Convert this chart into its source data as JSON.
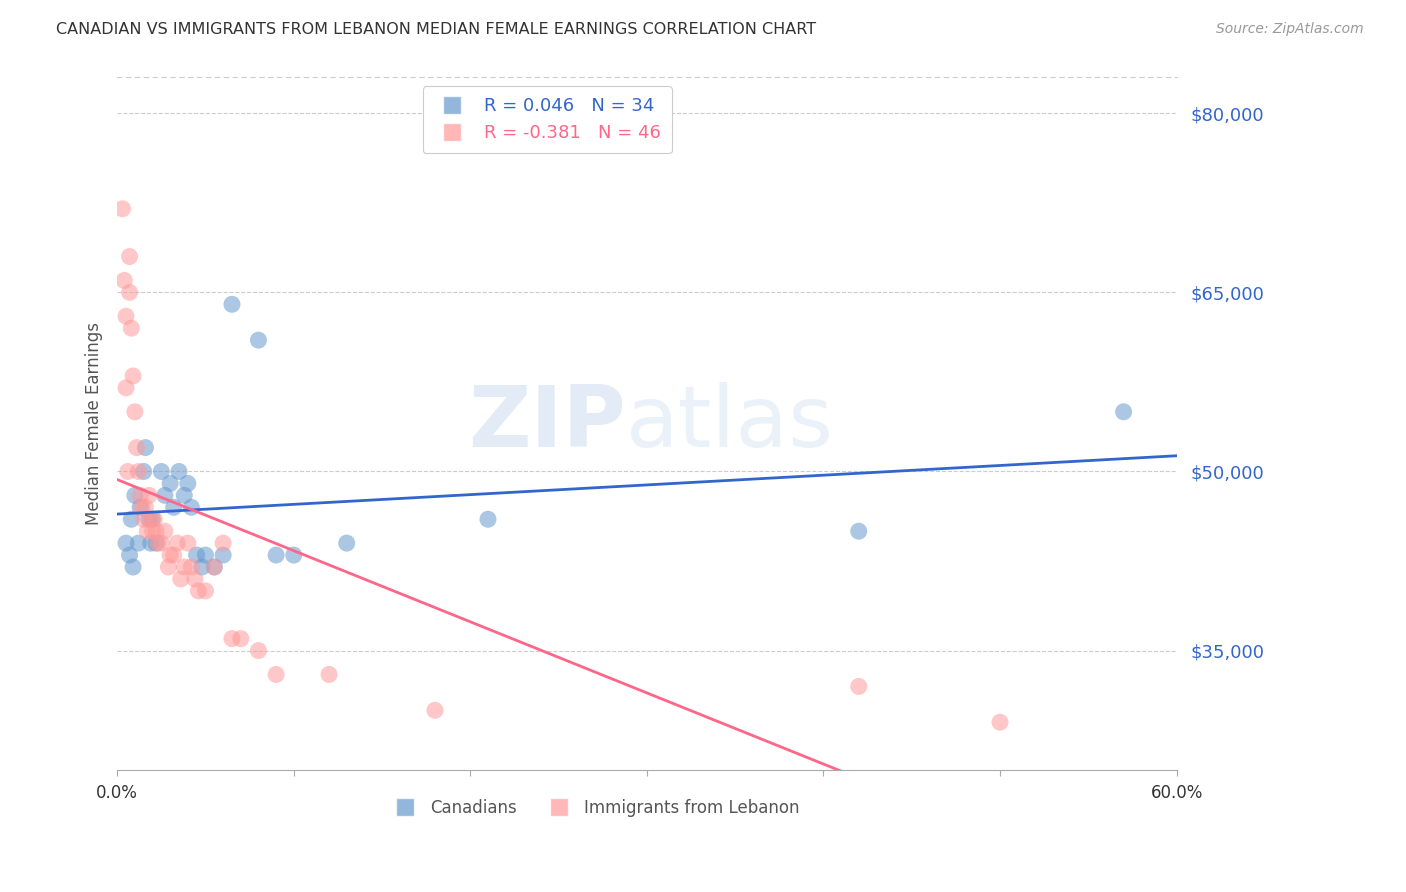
{
  "title": "CANADIAN VS IMMIGRANTS FROM LEBANON MEDIAN FEMALE EARNINGS CORRELATION CHART",
  "source": "Source: ZipAtlas.com",
  "ylabel": "Median Female Earnings",
  "xlim": [
    0.0,
    0.6
  ],
  "ylim": [
    25000,
    83000
  ],
  "yticks": [
    35000,
    50000,
    65000,
    80000
  ],
  "background_color": "#ffffff",
  "grid_color": "#cccccc",
  "watermark_zip": "ZIP",
  "watermark_atlas": "atlas",
  "canadians_color": "#6699cc",
  "lebanon_color": "#ff9999",
  "canadians_line_color": "#3366cc",
  "lebanon_line_color": "#ff6688",
  "legend_canadians_R": "R = 0.046",
  "legend_canadians_N": "N = 34",
  "legend_lebanon_R": "R = -0.381",
  "legend_lebanon_N": "N = 46",
  "canadians_x": [
    0.005,
    0.007,
    0.008,
    0.009,
    0.01,
    0.012,
    0.013,
    0.015,
    0.016,
    0.018,
    0.019,
    0.02,
    0.022,
    0.025,
    0.027,
    0.03,
    0.032,
    0.035,
    0.038,
    0.04,
    0.042,
    0.045,
    0.048,
    0.05,
    0.055,
    0.06,
    0.065,
    0.08,
    0.09,
    0.1,
    0.13,
    0.21,
    0.42,
    0.57
  ],
  "canadians_y": [
    44000,
    43000,
    46000,
    42000,
    48000,
    44000,
    47000,
    50000,
    52000,
    46000,
    44000,
    46000,
    44000,
    50000,
    48000,
    49000,
    47000,
    50000,
    48000,
    49000,
    47000,
    43000,
    42000,
    43000,
    42000,
    43000,
    64000,
    61000,
    43000,
    43000,
    44000,
    46000,
    45000,
    55000
  ],
  "lebanon_x": [
    0.003,
    0.004,
    0.005,
    0.005,
    0.006,
    0.007,
    0.007,
    0.008,
    0.009,
    0.01,
    0.011,
    0.012,
    0.013,
    0.014,
    0.015,
    0.016,
    0.017,
    0.018,
    0.019,
    0.02,
    0.021,
    0.022,
    0.023,
    0.025,
    0.027,
    0.029,
    0.03,
    0.032,
    0.034,
    0.036,
    0.038,
    0.04,
    0.042,
    0.044,
    0.046,
    0.05,
    0.055,
    0.06,
    0.065,
    0.07,
    0.08,
    0.09,
    0.12,
    0.18,
    0.42,
    0.5
  ],
  "lebanon_y": [
    72000,
    66000,
    63000,
    57000,
    50000,
    68000,
    65000,
    62000,
    58000,
    55000,
    52000,
    50000,
    48000,
    47000,
    46000,
    47000,
    45000,
    48000,
    46000,
    45000,
    46000,
    45000,
    44000,
    44000,
    45000,
    42000,
    43000,
    43000,
    44000,
    41000,
    42000,
    44000,
    42000,
    41000,
    40000,
    40000,
    42000,
    44000,
    36000,
    36000,
    35000,
    33000,
    33000,
    30000,
    32000,
    29000
  ]
}
